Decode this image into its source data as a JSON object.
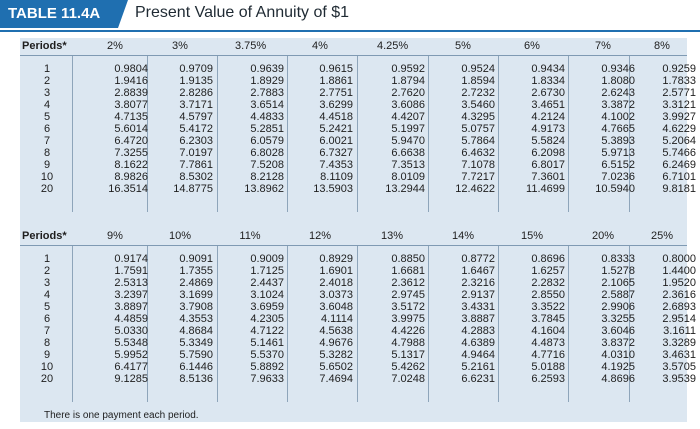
{
  "header": {
    "tag": "TABLE 11.4A",
    "title": "Present Value of Annuity of $1"
  },
  "tables": [
    {
      "periods_label": "Periods*",
      "rates": [
        "2%",
        "3%",
        "3.75%",
        "4%",
        "4.25%",
        "5%",
        "6%",
        "7%",
        "8%"
      ],
      "periods": [
        "1",
        "2",
        "3",
        "4",
        "5",
        "6",
        "7",
        "8",
        "9",
        "10",
        "20"
      ],
      "values": [
        [
          "0.9804",
          "1.9416",
          "2.8839",
          "3.8077",
          "4.7135",
          "5.6014",
          "6.4720",
          "7.3255",
          "8.1622",
          "8.9826",
          "16.3514"
        ],
        [
          "0.9709",
          "1.9135",
          "2.8286",
          "3.7171",
          "4.5797",
          "5.4172",
          "6.2303",
          "7.0197",
          "7.7861",
          "8.5302",
          "14.8775"
        ],
        [
          "0.9639",
          "1.8929",
          "2.7883",
          "3.6514",
          "4.4833",
          "5.2851",
          "6.0579",
          "6.8028",
          "7.5208",
          "8.2128",
          "13.8962"
        ],
        [
          "0.9615",
          "1.8861",
          "2.7751",
          "3.6299",
          "4.4518",
          "5.2421",
          "6.0021",
          "6.7327",
          "7.4353",
          "8.1109",
          "13.5903"
        ],
        [
          "0.9592",
          "1.8794",
          "2.7620",
          "3.6086",
          "4.4207",
          "5.1997",
          "5.9470",
          "6.6638",
          "7.3513",
          "8.0109",
          "13.2944"
        ],
        [
          "0.9524",
          "1.8594",
          "2.7232",
          "3.5460",
          "4.3295",
          "5.0757",
          "5.7864",
          "6.4632",
          "7.1078",
          "7.7217",
          "12.4622"
        ],
        [
          "0.9434",
          "1.8334",
          "2.6730",
          "3.4651",
          "4.2124",
          "4.9173",
          "5.5824",
          "6.2098",
          "6.8017",
          "7.3601",
          "11.4699"
        ],
        [
          "0.9346",
          "1.8080",
          "2.6243",
          "3.3872",
          "4.1002",
          "4.7665",
          "5.3893",
          "5.9713",
          "6.5152",
          "7.0236",
          "10.5940"
        ],
        [
          "0.9259",
          "1.7833",
          "2.5771",
          "3.3121",
          "3.9927",
          "4.6229",
          "5.2064",
          "5.7466",
          "6.2469",
          "6.7101",
          "9.8181"
        ]
      ]
    },
    {
      "periods_label": "Periods*",
      "rates": [
        "9%",
        "10%",
        "11%",
        "12%",
        "13%",
        "14%",
        "15%",
        "20%",
        "25%"
      ],
      "periods": [
        "1",
        "2",
        "3",
        "4",
        "5",
        "6",
        "7",
        "8",
        "9",
        "10",
        "20"
      ],
      "values": [
        [
          "0.9174",
          "1.7591",
          "2.5313",
          "3.2397",
          "3.8897",
          "4.4859",
          "5.0330",
          "5.5348",
          "5.9952",
          "6.4177",
          "9.1285"
        ],
        [
          "0.9091",
          "1.7355",
          "2.4869",
          "3.1699",
          "3.7908",
          "4.3553",
          "4.8684",
          "5.3349",
          "5.7590",
          "6.1446",
          "8.5136"
        ],
        [
          "0.9009",
          "1.7125",
          "2.4437",
          "3.1024",
          "3.6959",
          "4.2305",
          "4.7122",
          "5.1461",
          "5.5370",
          "5.8892",
          "7.9633"
        ],
        [
          "0.8929",
          "1.6901",
          "2.4018",
          "3.0373",
          "3.6048",
          "4.1114",
          "4.5638",
          "4.9676",
          "5.3282",
          "5.6502",
          "7.4694"
        ],
        [
          "0.8850",
          "1.6681",
          "2.3612",
          "2.9745",
          "3.5172",
          "3.9975",
          "4.4226",
          "4.7988",
          "5.1317",
          "5.4262",
          "7.0248"
        ],
        [
          "0.8772",
          "1.6467",
          "2.3216",
          "2.9137",
          "3.4331",
          "3.8887",
          "4.2883",
          "4.6389",
          "4.9464",
          "5.2161",
          "6.6231"
        ],
        [
          "0.8696",
          "1.6257",
          "2.2832",
          "2.8550",
          "3.3522",
          "3.7845",
          "4.1604",
          "4.4873",
          "4.7716",
          "5.0188",
          "6.2593"
        ],
        [
          "0.8333",
          "1.5278",
          "2.1065",
          "2.5887",
          "2.9906",
          "3.3255",
          "3.6046",
          "3.8372",
          "4.0310",
          "4.1925",
          "4.8696"
        ],
        [
          "0.8000",
          "1.4400",
          "1.9520",
          "2.3616",
          "2.6893",
          "2.9514",
          "3.1611",
          "3.3289",
          "3.4631",
          "3.5705",
          "3.9539"
        ]
      ]
    }
  ],
  "footnote": "There is one payment each period."
}
